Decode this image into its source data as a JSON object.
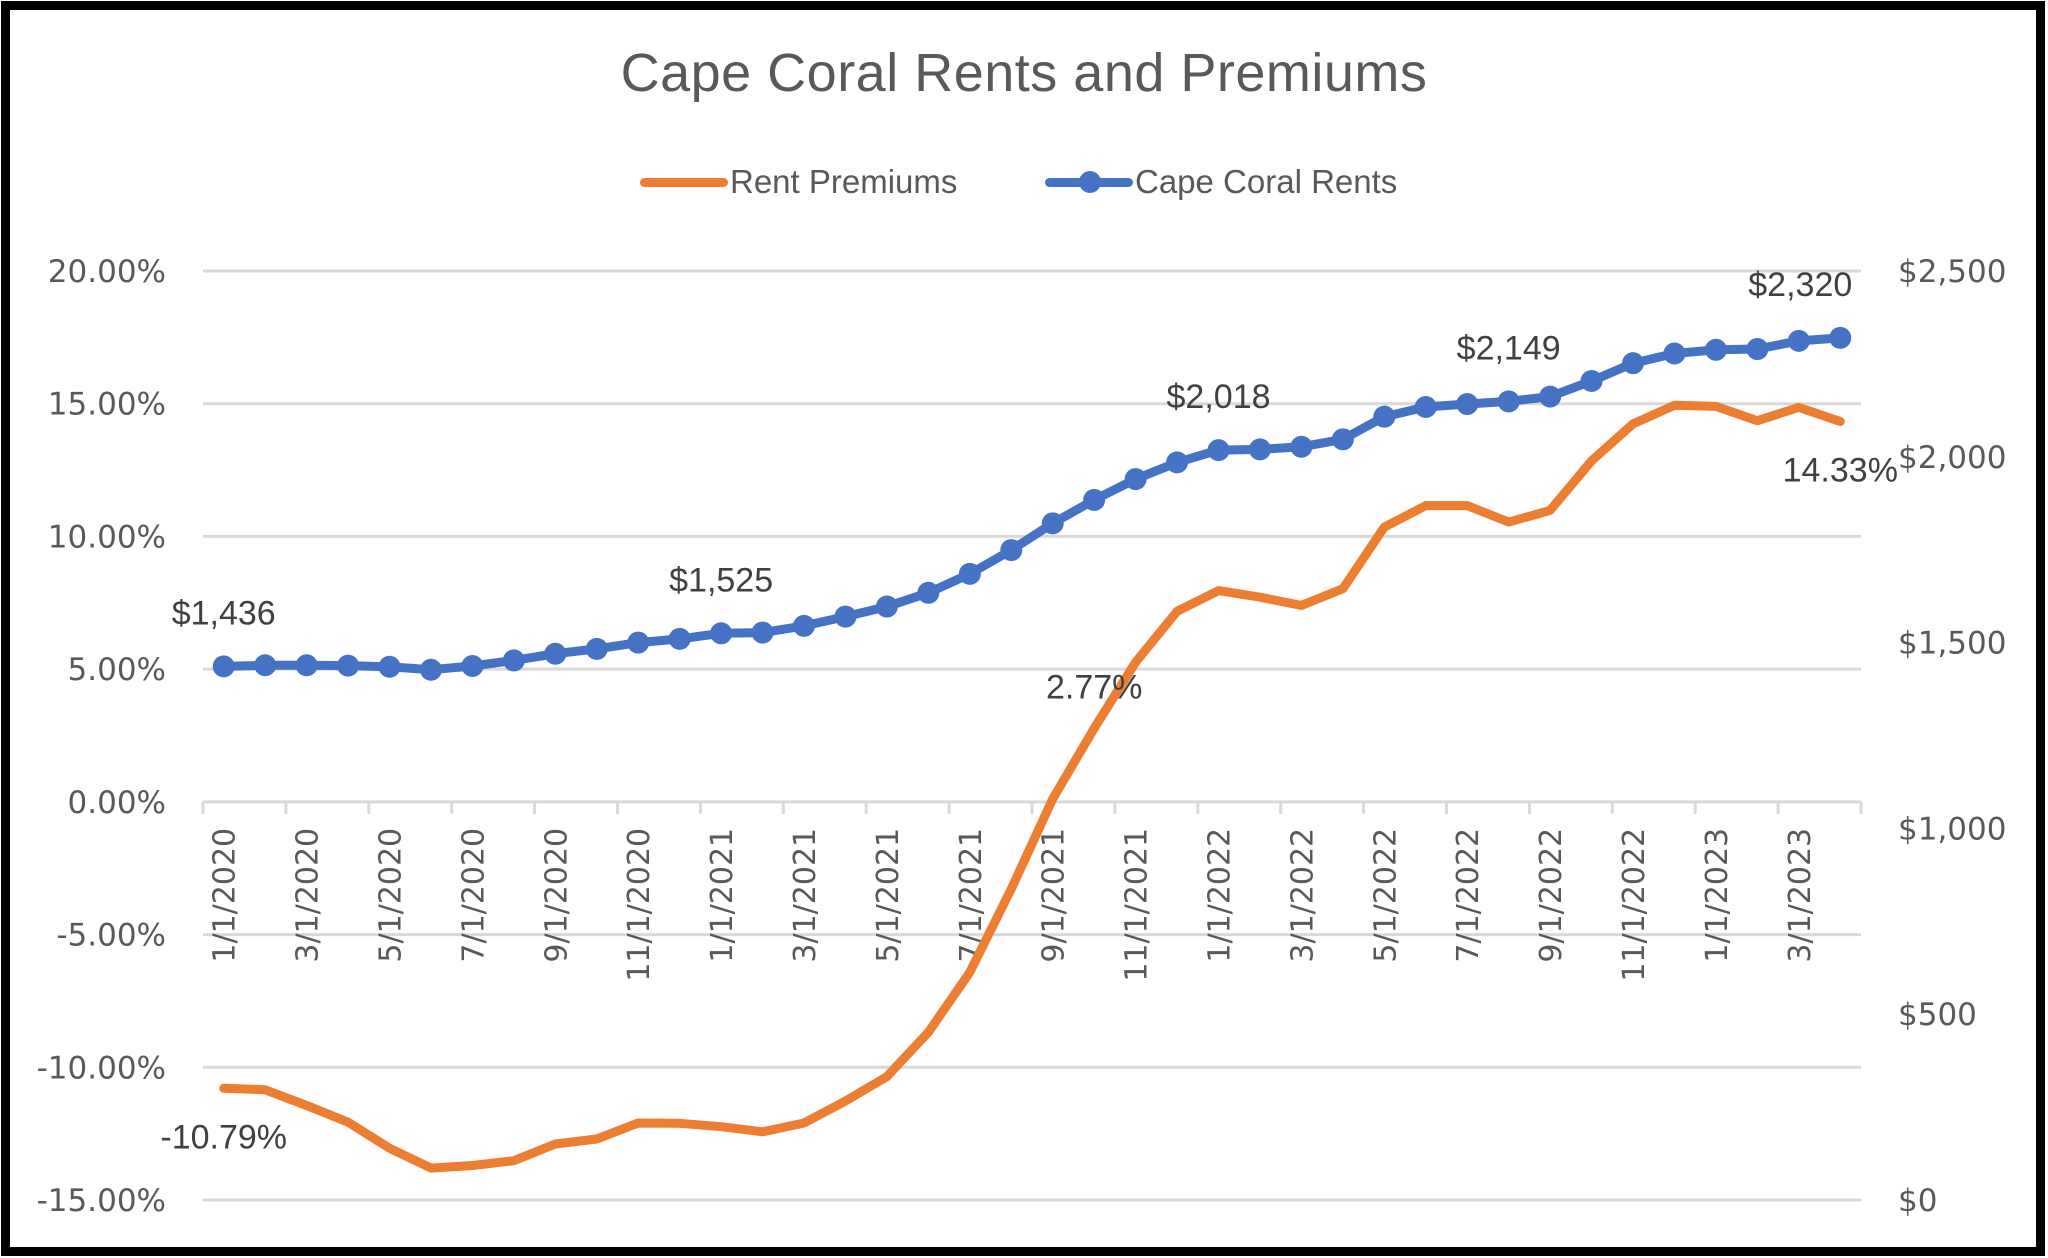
{
  "chart_data": {
    "type": "line",
    "title": "Cape Coral Rents and Premiums",
    "xlabel": "",
    "ylabel": "",
    "y2label": "",
    "grid": true,
    "legend_position": "top",
    "colors": {
      "rent_premiums": "#ED7D31",
      "cape_coral_rents": "#4472C4",
      "gridline": "#D9D9D9",
      "text": "#595959"
    },
    "x": [
      "1/1/2020",
      "2/1/2020",
      "3/1/2020",
      "4/1/2020",
      "5/1/2020",
      "6/1/2020",
      "7/1/2020",
      "8/1/2020",
      "9/1/2020",
      "10/1/2020",
      "11/1/2020",
      "12/1/2020",
      "1/1/2021",
      "2/1/2021",
      "3/1/2021",
      "4/1/2021",
      "5/1/2021",
      "6/1/2021",
      "7/1/2021",
      "8/1/2021",
      "9/1/2021",
      "10/1/2021",
      "11/1/2021",
      "12/1/2021",
      "1/1/2022",
      "2/1/2022",
      "3/1/2022",
      "4/1/2022",
      "5/1/2022",
      "6/1/2022",
      "7/1/2022",
      "8/1/2022",
      "9/1/2022",
      "10/1/2022",
      "11/1/2022",
      "12/1/2022",
      "1/1/2023",
      "2/1/2023",
      "3/1/2023",
      "4/1/2023"
    ],
    "x_tick_labels": [
      "1/1/2020",
      "3/1/2020",
      "5/1/2020",
      "7/1/2020",
      "9/1/2020",
      "11/1/2020",
      "1/1/2021",
      "3/1/2021",
      "5/1/2021",
      "7/1/2021",
      "9/1/2021",
      "11/1/2021",
      "1/1/2022",
      "3/1/2022",
      "5/1/2022",
      "7/1/2022",
      "9/1/2022",
      "11/1/2022",
      "1/1/2023",
      "3/1/2023"
    ],
    "y_left": {
      "min": -0.15,
      "max": 0.2,
      "step": 0.05,
      "tick_labels": [
        "20.00%",
        "15.00%",
        "10.00%",
        "5.00%",
        "0.00%",
        "-5.00%",
        "-10.00%",
        "-15.00%"
      ]
    },
    "y_right": {
      "min": 0,
      "max": 2500,
      "step": 500,
      "tick_labels": [
        "$2,500",
        "$2,000",
        "$1,500",
        "$1,000",
        "$500",
        "$0"
      ]
    },
    "series": [
      {
        "name": "Rent Premiums",
        "axis": "left",
        "marker": false,
        "color": "#ED7D31",
        "values": [
          -10.79,
          -10.85,
          -11.44,
          -12.07,
          -13.05,
          -13.8,
          -13.7,
          -13.52,
          -12.89,
          -12.7,
          -12.1,
          -12.11,
          -12.24,
          -12.43,
          -12.1,
          -11.27,
          -10.35,
          -8.68,
          -6.42,
          -3.28,
          0.11,
          2.77,
          5.26,
          7.18,
          7.96,
          7.71,
          7.4,
          8.03,
          10.35,
          11.16,
          11.16,
          10.54,
          10.98,
          12.85,
          14.24,
          14.94,
          14.9,
          14.36,
          14.86,
          14.33
        ],
        "unit": "percent",
        "data_labels": [
          {
            "index": 0,
            "text": "-10.79%",
            "position": "below"
          },
          {
            "index": 21,
            "text": "2.77%",
            "position": "above"
          },
          {
            "index": 39,
            "text": "14.33%",
            "position": "below"
          }
        ]
      },
      {
        "name": "Cape Coral Rents",
        "axis": "right",
        "marker": true,
        "color": "#4472C4",
        "values": [
          1436,
          1439,
          1439,
          1438,
          1435,
          1427,
          1437,
          1452,
          1470,
          1483,
          1500,
          1510,
          1525,
          1527,
          1545,
          1570,
          1597,
          1634,
          1685,
          1749,
          1821,
          1884,
          1940,
          1985,
          2018,
          2020,
          2027,
          2047,
          2108,
          2134,
          2142,
          2149,
          2162,
          2204,
          2252,
          2278,
          2288,
          2290,
          2312,
          2320
        ],
        "unit": "USD",
        "data_labels": [
          {
            "index": 0,
            "text": "$1,436",
            "position": "above"
          },
          {
            "index": 12,
            "text": "$1,525",
            "position": "above"
          },
          {
            "index": 24,
            "text": "$2,018",
            "position": "above"
          },
          {
            "index": 31,
            "text": "$2,149",
            "position": "above"
          },
          {
            "index": 39,
            "text": "$2,320",
            "position": "above"
          }
        ]
      }
    ]
  },
  "legend": {
    "items": [
      {
        "label": "Rent Premiums"
      },
      {
        "label": "Cape Coral Rents"
      }
    ]
  }
}
